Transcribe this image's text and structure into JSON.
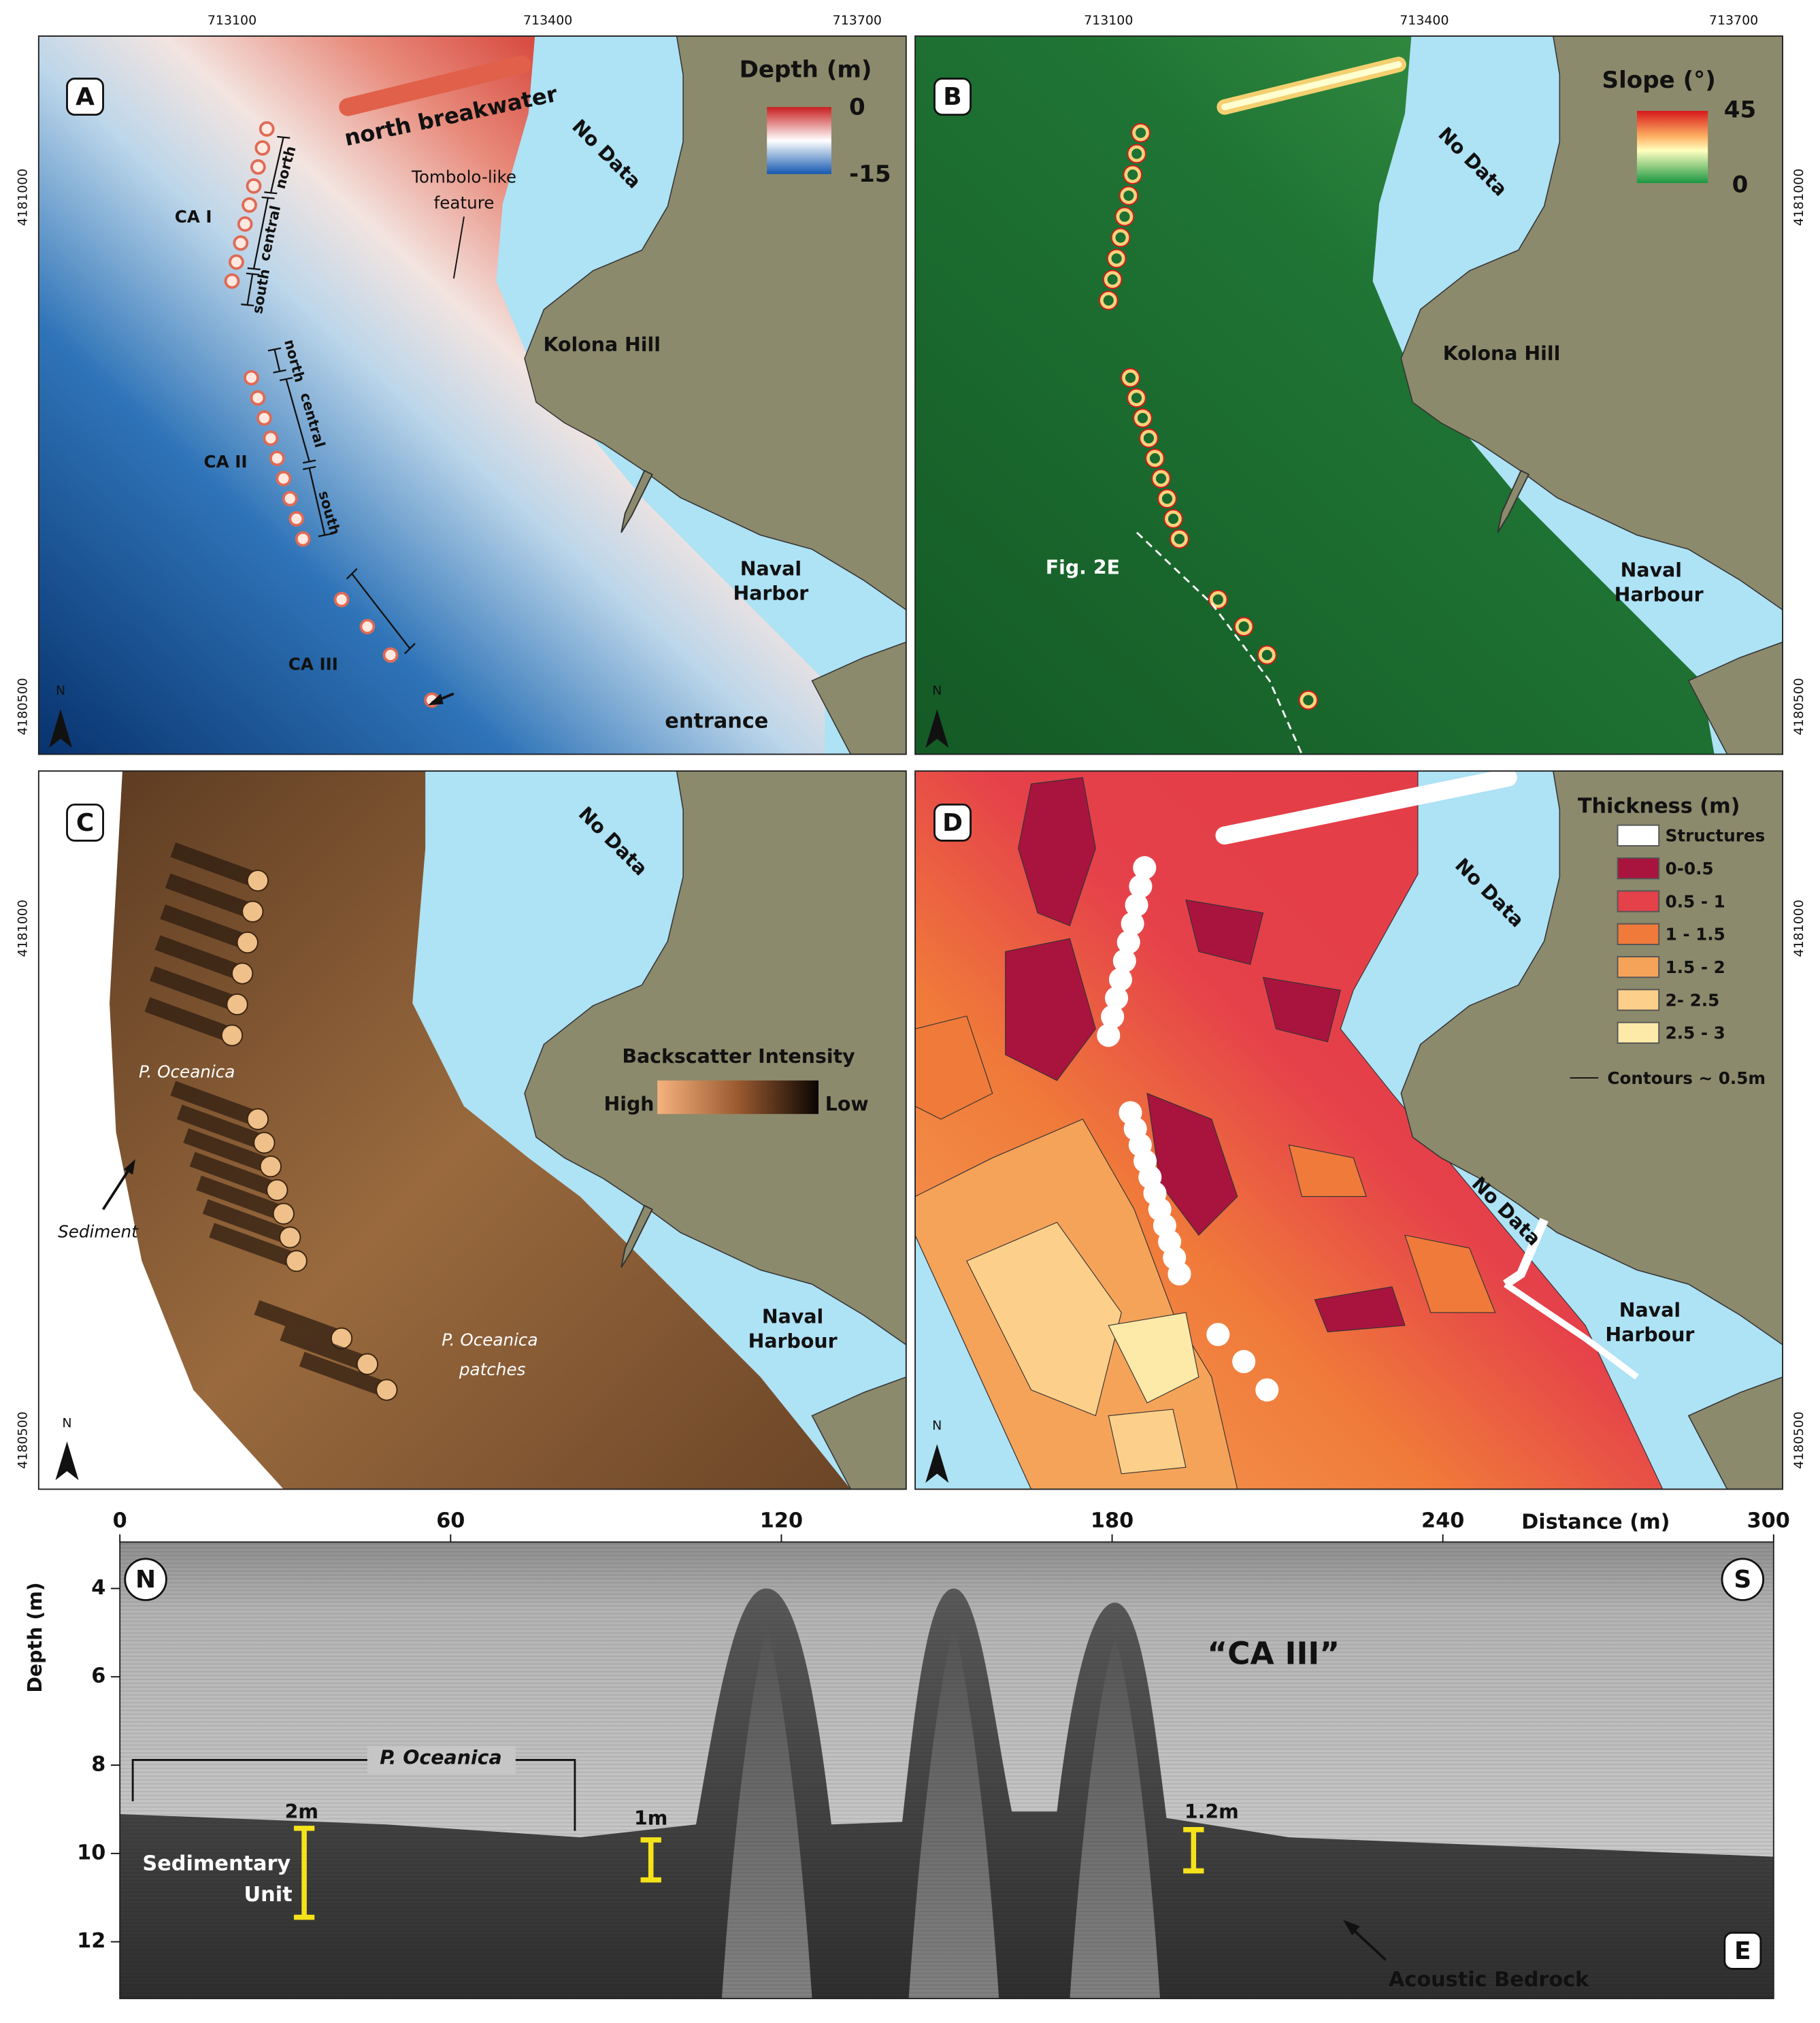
{
  "map_grid": {
    "eastings": [
      "713100",
      "713400",
      "713700"
    ],
    "northings": [
      "4181000",
      "4180500"
    ],
    "north_arrow": "N"
  },
  "panel_a": {
    "label": "A",
    "legend_title": "Depth (m)",
    "legend_max": "0",
    "legend_min": "-15",
    "breakwater": "north breakwater",
    "tombolo": [
      "Tombolo-like",
      "feature"
    ],
    "no_data": "No Data",
    "kolona": "Kolona Hill",
    "harbor": [
      "Naval",
      "Harbor"
    ],
    "entrance": "entrance",
    "areas": [
      "CA I",
      "CA II",
      "CA III"
    ],
    "segments": [
      "north",
      "central",
      "south",
      "north",
      "central",
      "south"
    ]
  },
  "panel_b": {
    "label": "B",
    "legend_title": "Slope (°)",
    "legend_max": "45",
    "legend_min": "0",
    "no_data": "No Data",
    "kolona": "Kolona Hill",
    "harbor": [
      "Naval",
      "Harbour"
    ],
    "profile": "Fig. 2E"
  },
  "panel_c": {
    "label": "C",
    "no_data": "No Data",
    "legend_title": "Backscatter Intensity",
    "legend_high": "High",
    "legend_low": "Low",
    "oceanica": "P. Oceanica",
    "sediment": "Sediment",
    "patches": [
      "P. Oceanica",
      "patches"
    ],
    "harbor": [
      "Naval",
      "Harbour"
    ]
  },
  "panel_d": {
    "label": "D",
    "legend_title": "Thickness (m)",
    "legend_items": [
      "Structures",
      "0-0.5",
      "0.5 - 1",
      "1 - 1.5",
      "1.5 - 2",
      "2- 2.5",
      "2.5 - 3"
    ],
    "contours": "Contours ~ 0.5m",
    "no_data": "No Data",
    "harbor": [
      "Naval",
      "Harbour"
    ]
  },
  "panel_e": {
    "label": "E",
    "x_title": "Distance (m)",
    "x_ticks": [
      0,
      60,
      120,
      180,
      240,
      300
    ],
    "y_title": "Depth (m)",
    "y_ticks": [
      4,
      6,
      8,
      10,
      12
    ],
    "start": "N",
    "end": "S",
    "feature": "“CA III”",
    "oceanica": "P. Oceanica",
    "thickness_labels": [
      "2m",
      "1m",
      "1.2m"
    ],
    "unit": [
      "Sedimentary",
      "Unit"
    ],
    "bedrock": "Acoustic Bedrock"
  }
}
